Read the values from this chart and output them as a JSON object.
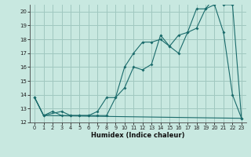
{
  "title": "",
  "xlabel": "Humidex (Indice chaleur)",
  "xlim": [
    -0.5,
    23.5
  ],
  "ylim": [
    12,
    20.5
  ],
  "yticks": [
    12,
    13,
    14,
    15,
    16,
    17,
    18,
    19,
    20
  ],
  "xticks": [
    0,
    1,
    2,
    3,
    4,
    5,
    6,
    7,
    8,
    9,
    10,
    11,
    12,
    13,
    14,
    15,
    16,
    17,
    18,
    19,
    20,
    21,
    22,
    23
  ],
  "bg_color": "#c8e8e0",
  "grid_color": "#a0c8c0",
  "line_color": "#1a6b6b",
  "line1_x": [
    0,
    1,
    2,
    3,
    4,
    5,
    6,
    7,
    8,
    9,
    10,
    11,
    12,
    13,
    14,
    15,
    16,
    17,
    18,
    19,
    20,
    21,
    22,
    23
  ],
  "line1_y": [
    13.8,
    12.5,
    12.8,
    12.5,
    12.5,
    12.5,
    12.5,
    12.8,
    13.8,
    13.8,
    14.5,
    16.0,
    15.8,
    16.2,
    18.3,
    17.5,
    18.3,
    18.5,
    20.2,
    20.2,
    20.5,
    18.5,
    14.0,
    12.3
  ],
  "line2_x": [
    0,
    1,
    3,
    4,
    5,
    6,
    7,
    8,
    9,
    10,
    11,
    12,
    13,
    14,
    15,
    16,
    17,
    18,
    19,
    20,
    21,
    22,
    23
  ],
  "line2_y": [
    13.8,
    12.5,
    12.8,
    12.5,
    12.5,
    12.5,
    12.5,
    12.5,
    13.8,
    16.0,
    17.0,
    17.8,
    17.8,
    18.0,
    17.5,
    17.0,
    18.5,
    18.8,
    20.2,
    21.0,
    20.5,
    20.5,
    12.3
  ],
  "line3_x": [
    0,
    1,
    23
  ],
  "line3_y": [
    13.8,
    12.5,
    12.3
  ]
}
